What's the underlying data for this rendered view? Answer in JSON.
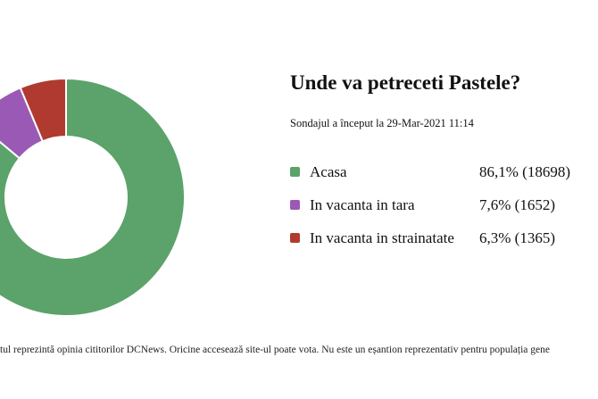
{
  "chart_data": {
    "type": "pie",
    "variant": "donut",
    "title": "Unde va petreceti Pastele?",
    "subtitle": "Sondajul a început la 29-Mar-2021 11:14",
    "slices": [
      {
        "label": "Acasa",
        "percent": 86.1,
        "count": 18698,
        "display": "86,1% (18698)",
        "color": "#5ba36a"
      },
      {
        "label": "In vacanta in tara",
        "percent": 7.6,
        "count": 1652,
        "display": "7,6% (1652)",
        "color": "#9b59b6"
      },
      {
        "label": "In vacanta in strainatate",
        "percent": 6.3,
        "count": 1365,
        "display": "6,3% (1365)",
        "color": "#b03a30"
      }
    ],
    "legend_position": "right"
  },
  "footer": "tul reprezintă opinia cititorilor DCNews. Oricine accesează site-ul poate vota. Nu este un eșantion reprezentativ pentru populația gene"
}
